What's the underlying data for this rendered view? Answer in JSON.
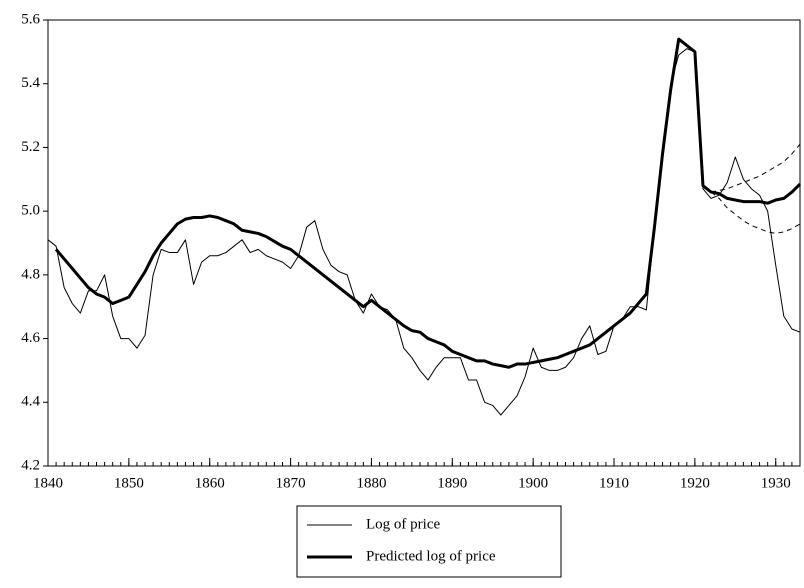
{
  "chart_data": {
    "type": "line",
    "x": [
      1840,
      1841,
      1842,
      1843,
      1844,
      1845,
      1846,
      1847,
      1848,
      1849,
      1850,
      1851,
      1852,
      1853,
      1854,
      1855,
      1856,
      1857,
      1858,
      1859,
      1860,
      1861,
      1862,
      1863,
      1864,
      1865,
      1866,
      1867,
      1868,
      1869,
      1870,
      1871,
      1872,
      1873,
      1874,
      1875,
      1876,
      1877,
      1878,
      1879,
      1880,
      1881,
      1882,
      1883,
      1884,
      1885,
      1886,
      1887,
      1888,
      1889,
      1890,
      1891,
      1892,
      1893,
      1894,
      1895,
      1896,
      1897,
      1898,
      1899,
      1900,
      1901,
      1902,
      1903,
      1904,
      1905,
      1906,
      1907,
      1908,
      1909,
      1910,
      1911,
      1912,
      1913,
      1914,
      1915,
      1916,
      1917,
      1918,
      1919,
      1920,
      1921,
      1922,
      1923,
      1924,
      1925,
      1926,
      1927,
      1928,
      1929,
      1930,
      1931,
      1932,
      1933
    ],
    "series": [
      {
        "name": "Log of price",
        "color": "#000000",
        "width": 1,
        "dash": false,
        "values": [
          4.91,
          4.89,
          4.76,
          4.71,
          4.68,
          4.75,
          4.75,
          4.8,
          4.67,
          4.6,
          4.6,
          4.57,
          4.61,
          4.8,
          4.88,
          4.87,
          4.87,
          4.91,
          4.77,
          4.84,
          4.86,
          4.86,
          4.87,
          4.89,
          4.91,
          4.87,
          4.88,
          4.86,
          4.85,
          4.84,
          4.82,
          4.86,
          4.95,
          4.97,
          4.88,
          4.83,
          4.81,
          4.8,
          4.72,
          4.68,
          4.74,
          4.7,
          4.69,
          4.66,
          4.57,
          4.54,
          4.5,
          4.47,
          4.51,
          4.54,
          4.54,
          4.54,
          4.47,
          4.47,
          4.4,
          4.39,
          4.36,
          4.39,
          4.42,
          4.48,
          4.57,
          4.51,
          4.5,
          4.5,
          4.51,
          4.54,
          4.6,
          4.64,
          4.55,
          4.56,
          4.64,
          4.66,
          4.7,
          4.7,
          4.69,
          4.95,
          5.2,
          5.4,
          5.49,
          5.51,
          5.5,
          5.07,
          5.04,
          5.05,
          5.09,
          5.17,
          5.1,
          5.07,
          5.05,
          5.0,
          4.83,
          4.67,
          4.63,
          4.62
        ]
      },
      {
        "name": "Predicted log of price",
        "color": "#000000",
        "width": 3,
        "dash": false,
        "values": [
          null,
          4.88,
          4.85,
          4.82,
          4.79,
          4.76,
          4.74,
          4.73,
          4.71,
          4.72,
          4.73,
          4.77,
          4.81,
          4.86,
          4.9,
          4.93,
          4.96,
          4.975,
          4.98,
          4.98,
          4.985,
          4.98,
          4.97,
          4.96,
          4.94,
          4.935,
          4.93,
          4.92,
          4.905,
          4.89,
          4.88,
          4.86,
          4.84,
          4.82,
          4.8,
          4.78,
          4.76,
          4.74,
          4.72,
          4.7,
          4.72,
          4.7,
          4.68,
          4.66,
          4.64,
          4.625,
          4.62,
          4.6,
          4.59,
          4.58,
          4.56,
          4.55,
          4.54,
          4.53,
          4.53,
          4.52,
          4.515,
          4.51,
          4.52,
          4.52,
          4.525,
          4.53,
          4.535,
          4.54,
          4.55,
          4.56,
          4.57,
          4.58,
          4.6,
          4.62,
          4.64,
          4.66,
          4.68,
          4.71,
          4.74,
          4.95,
          5.18,
          5.38,
          5.54,
          5.52,
          5.5,
          5.08,
          5.06,
          5.055,
          5.04,
          5.035,
          5.03,
          5.03,
          5.03,
          5.025,
          5.035,
          5.04,
          5.06,
          5.085
        ]
      },
      {
        "color": "#000000",
        "width": 1,
        "dash": true,
        "values": [
          null,
          null,
          null,
          null,
          null,
          null,
          null,
          null,
          null,
          null,
          null,
          null,
          null,
          null,
          null,
          null,
          null,
          null,
          null,
          null,
          null,
          null,
          null,
          null,
          null,
          null,
          null,
          null,
          null,
          null,
          null,
          null,
          null,
          null,
          null,
          null,
          null,
          null,
          null,
          null,
          null,
          null,
          null,
          null,
          null,
          null,
          null,
          null,
          null,
          null,
          null,
          null,
          null,
          null,
          null,
          null,
          null,
          null,
          null,
          null,
          null,
          null,
          null,
          null,
          null,
          null,
          null,
          null,
          null,
          null,
          null,
          null,
          null,
          null,
          null,
          null,
          null,
          null,
          null,
          null,
          null,
          null,
          5.06,
          5.065,
          5.07,
          5.08,
          5.09,
          5.1,
          5.11,
          5.125,
          5.14,
          5.155,
          5.18,
          5.21
        ]
      },
      {
        "color": "#000000",
        "width": 1,
        "dash": true,
        "values": [
          null,
          null,
          null,
          null,
          null,
          null,
          null,
          null,
          null,
          null,
          null,
          null,
          null,
          null,
          null,
          null,
          null,
          null,
          null,
          null,
          null,
          null,
          null,
          null,
          null,
          null,
          null,
          null,
          null,
          null,
          null,
          null,
          null,
          null,
          null,
          null,
          null,
          null,
          null,
          null,
          null,
          null,
          null,
          null,
          null,
          null,
          null,
          null,
          null,
          null,
          null,
          null,
          null,
          null,
          null,
          null,
          null,
          null,
          null,
          null,
          null,
          null,
          null,
          null,
          null,
          null,
          null,
          null,
          null,
          null,
          null,
          null,
          null,
          null,
          null,
          null,
          null,
          null,
          null,
          null,
          null,
          null,
          5.06,
          5.04,
          5.01,
          4.99,
          4.97,
          4.955,
          4.945,
          4.935,
          4.93,
          4.935,
          4.945,
          4.96
        ]
      }
    ],
    "xlim": [
      1840,
      1933
    ],
    "xticks": [
      1840,
      1850,
      1860,
      1870,
      1880,
      1890,
      1900,
      1910,
      1920,
      1930
    ],
    "ylim": [
      4.2,
      5.6
    ],
    "yticks": [
      4.2,
      4.4,
      4.6,
      4.8,
      {
        "value": 5,
        "label": "5.0"
      },
      5.2,
      5.4,
      5.6
    ],
    "grid": false,
    "legend": "bottom"
  }
}
